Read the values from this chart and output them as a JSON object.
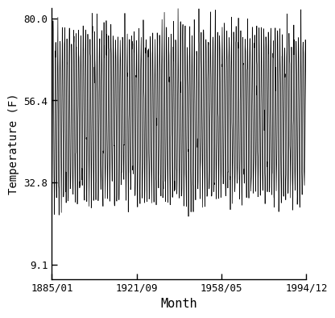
{
  "title": "",
  "xlabel": "Month",
  "ylabel": "Temperature (F)",
  "start_year": 1885,
  "start_month": 1,
  "end_year": 1994,
  "end_month": 12,
  "yticks": [
    9.1,
    32.8,
    56.4,
    80.0
  ],
  "xtick_labels": [
    "1885/01",
    "1921/09",
    "1958/05",
    "1994/12"
  ],
  "xtick_positions_months": [
    0,
    440,
    877,
    1319
  ],
  "mean_temp": 52.0,
  "amplitude": 22.5,
  "min_temp": 9.1,
  "max_temp": 80.0,
  "line_color": "#000000",
  "background_color": "#ffffff",
  "line_width": 0.5,
  "ylim_low": 5.0,
  "ylim_high": 83.0
}
